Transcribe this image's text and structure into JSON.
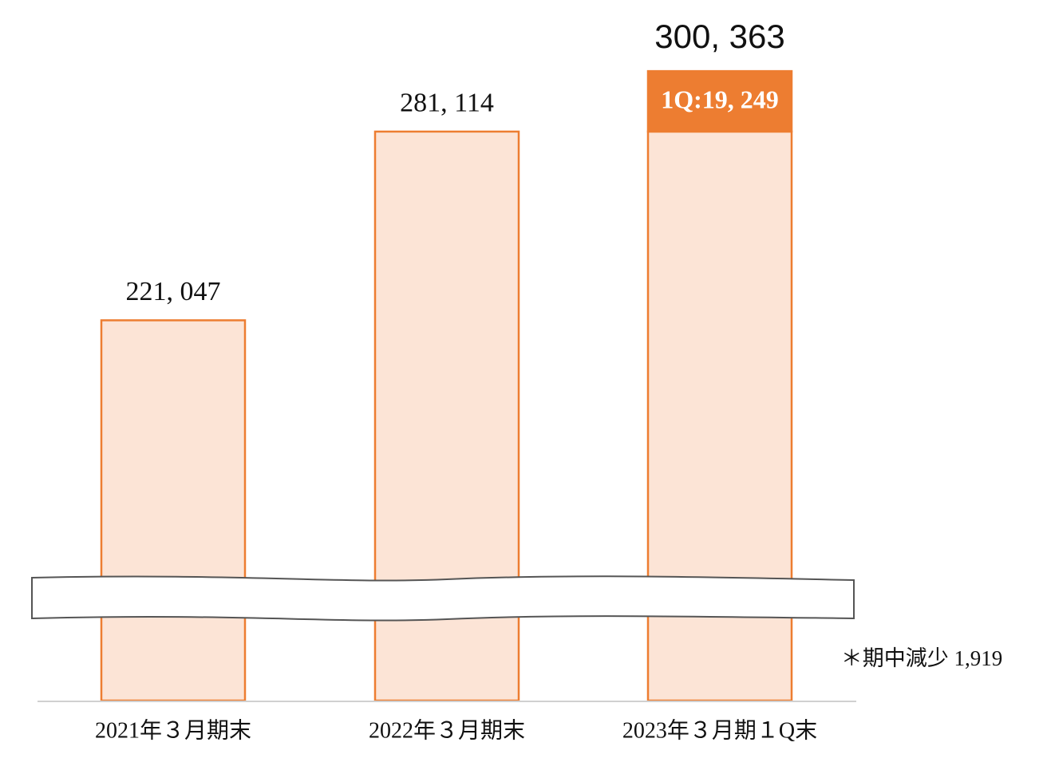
{
  "chart_data": {
    "type": "bar",
    "stacked": true,
    "categories": [
      "2021年３月期末",
      "2022年３月期末",
      "2023年３月期１Q末"
    ],
    "series": [
      {
        "color": "#fce4d6",
        "edge_color": "#ed7d31",
        "values": [
          221047,
          281114,
          281114
        ],
        "value_labels": [
          "221, 047",
          "281, 114",
          null
        ]
      },
      {
        "color": "#ed7d31",
        "values": [
          null,
          null,
          19249
        ],
        "value_labels": [
          null,
          null,
          "1Q:19, 249"
        ]
      }
    ],
    "totals": [
      null,
      null,
      300363
    ],
    "total_labels": [
      null,
      null,
      "300, 363"
    ],
    "annotation": "＊期中減少 1,919",
    "ylim": [
      100000,
      323000
    ],
    "axis_break": true
  }
}
